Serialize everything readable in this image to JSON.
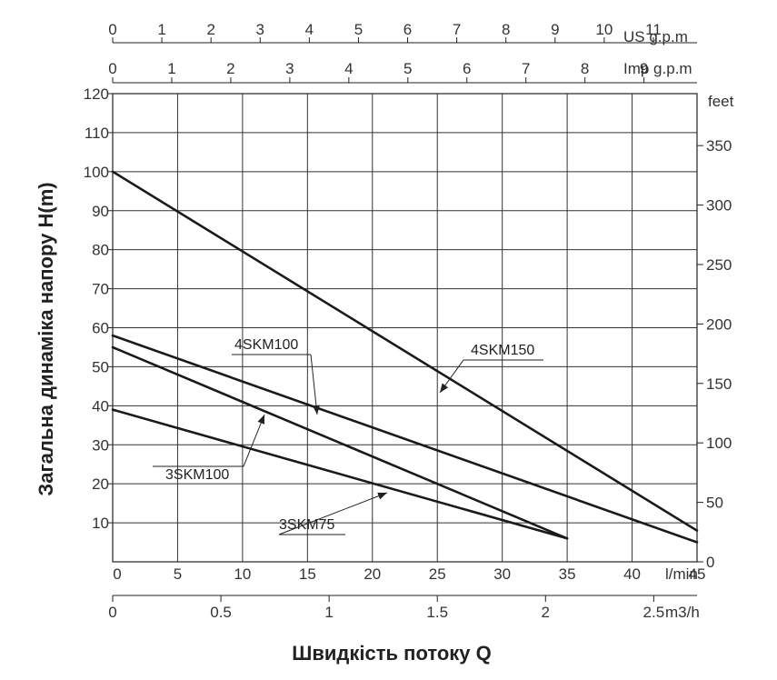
{
  "chart_data": {
    "type": "line",
    "title": "",
    "xlabel": "Швидкість потоку Q",
    "ylabel": "Загальна динаміка напору H(m)",
    "xlim": [
      0,
      45
    ],
    "ylim": [
      0,
      120
    ],
    "grid": true,
    "primary_x_unit": "l/min",
    "primary_y_unit": "",
    "primary_y_ticks": [
      10,
      20,
      30,
      40,
      50,
      60,
      70,
      80,
      90,
      100,
      110,
      120
    ],
    "primary_x_ticks": [
      0,
      5,
      10,
      15,
      20,
      25,
      30,
      35,
      40,
      45
    ],
    "secondary_axes": {
      "us_gpm": {
        "unit": "US g.p.m",
        "ticks": [
          0,
          1,
          2,
          3,
          4,
          5,
          6,
          7,
          8,
          9,
          10,
          11
        ]
      },
      "imp_gpm": {
        "unit": "Imp g.p.m",
        "ticks": [
          0,
          1,
          2,
          3,
          4,
          5,
          6,
          7,
          8,
          9
        ]
      },
      "m3h": {
        "unit": "m3/h",
        "ticks": [
          "0",
          "0.5",
          "1",
          "1.5",
          "2",
          "2.5"
        ]
      },
      "feet": {
        "unit": "feet",
        "ticks": [
          0,
          50,
          100,
          150,
          200,
          250,
          300,
          350
        ]
      }
    },
    "series": [
      {
        "name": "4SKM150",
        "x": [
          0,
          45
        ],
        "y": [
          100,
          8
        ]
      },
      {
        "name": "4SKM100",
        "x": [
          0,
          45
        ],
        "y": [
          58,
          5
        ]
      },
      {
        "name": "3SKM100",
        "x": [
          0,
          35
        ],
        "y": [
          55,
          6
        ]
      },
      {
        "name": "3SKM75",
        "x": [
          0,
          35
        ],
        "y": [
          39,
          6
        ]
      }
    ]
  }
}
